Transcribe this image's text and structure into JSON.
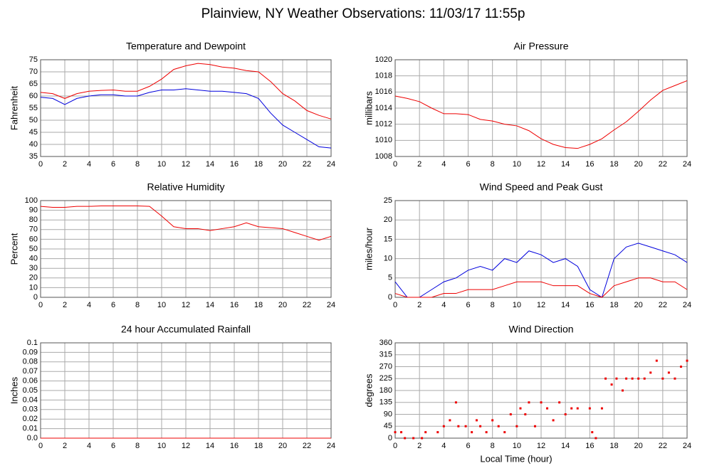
{
  "title": "Plainview, NY Weather Observations: 11/03/17 11:55p",
  "chart_data": [
    {
      "type": "line",
      "title": "Temperature and Dewpoint",
      "ylabel": "Fahrenheit",
      "x": [
        0,
        1,
        2,
        3,
        4,
        5,
        6,
        7,
        8,
        9,
        10,
        11,
        12,
        13,
        14,
        15,
        16,
        17,
        18,
        19,
        20,
        21,
        22,
        23,
        24
      ],
      "series": [
        {
          "color": "#ee0000",
          "values": [
            61.5,
            61,
            59,
            61,
            62,
            62.3,
            62.5,
            62,
            62,
            64,
            67,
            71,
            72.5,
            73.5,
            73,
            72,
            71.5,
            70.5,
            70,
            66,
            61,
            58,
            54,
            52,
            50.5
          ]
        },
        {
          "color": "#0000dd",
          "values": [
            59.5,
            59,
            56.5,
            59,
            60,
            60.5,
            60.5,
            60,
            60,
            61.5,
            62.5,
            62.5,
            63,
            62.5,
            62,
            62,
            61.5,
            61,
            59,
            53,
            48,
            45,
            42,
            39,
            38.5
          ]
        }
      ],
      "xlim": [
        0,
        24
      ],
      "xticks": [
        0,
        2,
        4,
        6,
        8,
        10,
        12,
        14,
        16,
        18,
        20,
        22,
        24
      ],
      "ylim": [
        35,
        75
      ],
      "yticks": [
        35,
        40,
        45,
        50,
        55,
        60,
        65,
        70,
        75
      ],
      "grid": true
    },
    {
      "type": "line",
      "title": "Air Pressure",
      "ylabel": "millibars",
      "x": [
        0,
        1,
        2,
        3,
        4,
        5,
        6,
        7,
        8,
        9,
        10,
        11,
        12,
        13,
        14,
        15,
        16,
        17,
        18,
        19,
        20,
        21,
        22,
        23,
        24
      ],
      "series": [
        {
          "color": "#ee0000",
          "values": [
            1015.5,
            1015.2,
            1014.8,
            1014,
            1013.3,
            1013.3,
            1013.2,
            1012.6,
            1012.4,
            1012,
            1011.8,
            1011.2,
            1010.2,
            1009.5,
            1009.1,
            1009,
            1009.5,
            1010.2,
            1011.3,
            1012.3,
            1013.6,
            1015,
            1016.2,
            1016.8,
            1017.4
          ]
        }
      ],
      "xlim": [
        0,
        24
      ],
      "xticks": [
        0,
        2,
        4,
        6,
        8,
        10,
        12,
        14,
        16,
        18,
        20,
        22,
        24
      ],
      "ylim": [
        1008,
        1020
      ],
      "yticks": [
        1008,
        1010,
        1012,
        1014,
        1016,
        1018,
        1020
      ],
      "grid": true
    },
    {
      "type": "line",
      "title": "Relative Humidity",
      "ylabel": "Percent",
      "x": [
        0,
        1,
        2,
        3,
        4,
        5,
        6,
        7,
        8,
        9,
        10,
        11,
        12,
        13,
        14,
        15,
        16,
        17,
        18,
        19,
        20,
        21,
        22,
        23,
        24
      ],
      "series": [
        {
          "color": "#ee0000",
          "values": [
            94,
            93,
            93,
            94,
            94,
            94.5,
            94.5,
            94.5,
            94.5,
            94,
            84,
            73,
            71,
            71,
            69,
            71,
            73,
            77,
            73,
            72,
            71,
            67,
            63,
            59,
            63
          ]
        }
      ],
      "xlim": [
        0,
        24
      ],
      "xticks": [
        0,
        2,
        4,
        6,
        8,
        10,
        12,
        14,
        16,
        18,
        20,
        22,
        24
      ],
      "ylim": [
        0,
        100
      ],
      "yticks": [
        0,
        10,
        20,
        30,
        40,
        50,
        60,
        70,
        80,
        90,
        100
      ],
      "grid": true
    },
    {
      "type": "line",
      "title": "Wind Speed and Peak Gust",
      "ylabel": "miles/hour",
      "x": [
        0,
        1,
        2,
        3,
        4,
        5,
        6,
        7,
        8,
        9,
        10,
        11,
        12,
        13,
        14,
        15,
        16,
        17,
        18,
        19,
        20,
        21,
        22,
        23,
        24
      ],
      "series": [
        {
          "color": "#0000dd",
          "values": [
            4,
            0,
            0,
            2,
            4,
            5,
            7,
            8,
            7,
            10,
            9,
            12,
            11,
            9,
            10,
            8,
            2,
            0,
            10,
            13,
            14,
            13,
            12,
            11,
            9
          ]
        },
        {
          "color": "#ee0000",
          "values": [
            1,
            0,
            0,
            0,
            1,
            1,
            2,
            2,
            2,
            3,
            4,
            4,
            4,
            3,
            3,
            3,
            1,
            0,
            3,
            4,
            5,
            5,
            4,
            4,
            2
          ]
        }
      ],
      "xlim": [
        0,
        24
      ],
      "xticks": [
        0,
        2,
        4,
        6,
        8,
        10,
        12,
        14,
        16,
        18,
        20,
        22,
        24
      ],
      "ylim": [
        0,
        25
      ],
      "yticks": [
        0,
        5,
        10,
        15,
        20,
        25
      ],
      "grid": true
    },
    {
      "type": "line",
      "title": "24 hour Accumulated Rainfall",
      "ylabel": "Inches",
      "x": [
        0,
        24
      ],
      "series": [
        {
          "color": "#ee0000",
          "values": [
            0,
            0
          ]
        }
      ],
      "xlim": [
        0,
        24
      ],
      "xticks": [
        0,
        2,
        4,
        6,
        8,
        10,
        12,
        14,
        16,
        18,
        20,
        22,
        24
      ],
      "ylim": [
        0,
        0.1
      ],
      "yticks": [
        {
          "value": 0,
          "label": "0.0"
        },
        0.01,
        0.02,
        0.03,
        0.04,
        0.05,
        0.06,
        0.07,
        0.08,
        0.09,
        0.1
      ],
      "grid": true
    },
    {
      "type": "scatter",
      "title": "Wind Direction",
      "ylabel": "degrees",
      "xlabel": "Local Time (hour)",
      "color": "#ee0000",
      "x": [
        0,
        0.5,
        0.8,
        1.5,
        2.2,
        2.5,
        3.5,
        4,
        4.5,
        5,
        5.2,
        5.8,
        6.3,
        6.7,
        7,
        7.5,
        8,
        8.5,
        9,
        9.5,
        10,
        10.3,
        10.7,
        11,
        11.5,
        12,
        12.5,
        13,
        13.5,
        14,
        14.5,
        15,
        16,
        16.2,
        16.5,
        17,
        17.3,
        17.8,
        18.2,
        18.7,
        19,
        19.5,
        20,
        20.5,
        21,
        21.5,
        22,
        22.5,
        23,
        23.5,
        24
      ],
      "values": [
        22.5,
        22.5,
        0,
        0,
        0,
        22.5,
        22.5,
        45,
        67.5,
        135,
        45,
        45,
        22.5,
        67.5,
        45,
        22.5,
        67.5,
        45,
        22.5,
        90,
        45,
        112.5,
        90,
        135,
        45,
        135,
        112.5,
        67.5,
        135,
        90,
        112.5,
        112.5,
        112.5,
        22.5,
        0,
        112.5,
        225,
        202.5,
        225,
        180,
        225,
        225,
        225,
        225,
        247.5,
        292.5,
        225,
        247.5,
        225,
        270,
        292.5
      ],
      "xlim": [
        0,
        24
      ],
      "xticks": [
        0,
        2,
        4,
        6,
        8,
        10,
        12,
        14,
        16,
        18,
        20,
        22,
        24
      ],
      "ylim": [
        0,
        360
      ],
      "yticks": [
        0,
        45,
        90,
        135,
        180,
        225,
        270,
        315,
        360
      ],
      "grid": true
    }
  ]
}
